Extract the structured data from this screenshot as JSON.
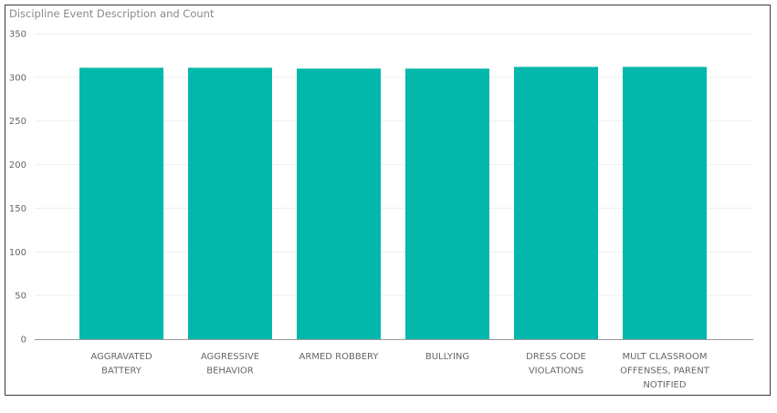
{
  "chart_data": {
    "type": "bar",
    "title": "Discipline Event Description and Count",
    "xlabel": "",
    "ylabel": "",
    "categories": [
      [
        "AGGRAVATED",
        "BATTERY"
      ],
      [
        "AGGRESSIVE",
        "BEHAVIOR"
      ],
      [
        "ARMED ROBBERY"
      ],
      [
        "BULLYING"
      ],
      [
        "DRESS CODE",
        "VIOLATIONS"
      ],
      [
        "MULT CLASSROOM",
        "OFFENSES, PARENT",
        "NOTIFIED"
      ]
    ],
    "values": [
      311,
      311,
      310,
      310,
      312,
      312
    ],
    "ylim": [
      0,
      350
    ],
    "yticks": [
      "0",
      "50",
      "100",
      "150",
      "200",
      "250",
      "300",
      "350"
    ],
    "bar_color": "#01B8AA",
    "grid": true,
    "legend": "none"
  }
}
